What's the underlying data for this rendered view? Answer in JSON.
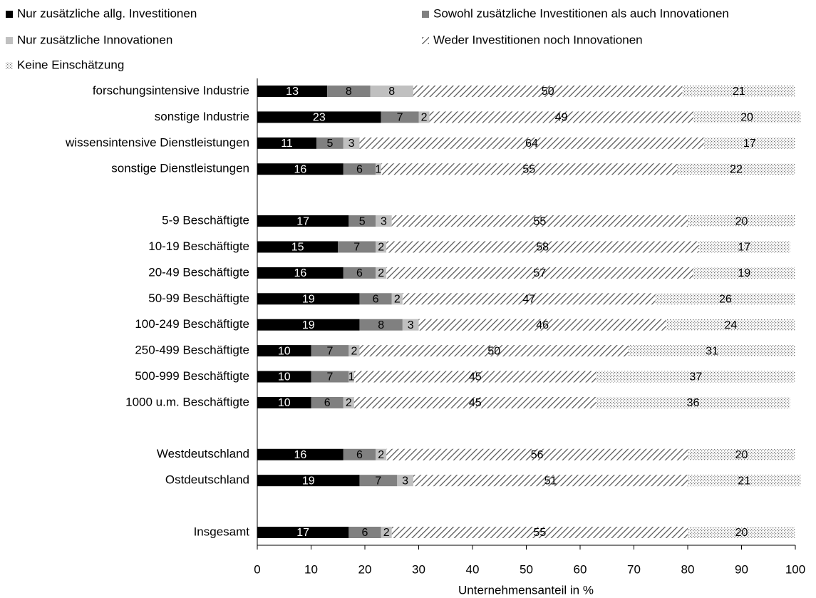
{
  "chart_data": {
    "type": "stacked-barh",
    "xlabel": "Unternehmensanteil in %",
    "categories": [
      "forschungsintensive Industrie",
      "sonstige Industrie",
      "wissensintensive Dienstleistungen",
      "sonstige Dienstleistungen",
      null,
      "5-9 Beschäftigte",
      "10-19 Beschäftigte",
      "20-49 Beschäftigte",
      "50-99 Beschäftigte",
      "100-249 Beschäftigte",
      "250-499 Beschäftigte",
      "500-999 Beschäftigte",
      "1000 u.m. Beschäftigte",
      null,
      "Westdeutschland",
      "Ostdeutschland",
      null,
      "Insgesamt"
    ],
    "series": [
      {
        "name": "Nur zusätzliche allg. Investitionen",
        "color": "#000000",
        "pattern": "solid",
        "values": [
          13,
          23,
          11,
          16,
          null,
          17,
          15,
          16,
          19,
          19,
          10,
          10,
          10,
          null,
          16,
          19,
          null,
          17
        ]
      },
      {
        "name": "Sowohl zusätzliche Investitionen als auch Innovationen",
        "color": "#808080",
        "pattern": "solid",
        "values": [
          8,
          7,
          5,
          6,
          null,
          5,
          7,
          6,
          6,
          8,
          7,
          7,
          6,
          null,
          6,
          7,
          null,
          6
        ]
      },
      {
        "name": "Nur zusätzliche Innovationen",
        "color": "#c0c0c0",
        "pattern": "solid",
        "values": [
          8,
          2,
          3,
          1,
          null,
          3,
          2,
          2,
          2,
          3,
          2,
          1,
          2,
          null,
          2,
          3,
          null,
          2
        ]
      },
      {
        "name": "Weder Investitionen noch Innovationen",
        "color": "#808080",
        "pattern": "hatch",
        "values": [
          50,
          49,
          64,
          55,
          null,
          55,
          58,
          57,
          47,
          46,
          50,
          45,
          45,
          null,
          56,
          51,
          null,
          55
        ]
      },
      {
        "name": "Keine Einschätzung",
        "color": "#808080",
        "pattern": "dots",
        "values": [
          21,
          20,
          17,
          22,
          null,
          20,
          17,
          19,
          26,
          24,
          31,
          37,
          36,
          null,
          20,
          21,
          null,
          20
        ]
      }
    ],
    "xlim": [
      0,
      100
    ],
    "xticks": [
      0,
      10,
      20,
      30,
      40,
      50,
      60,
      70,
      80,
      90,
      100
    ]
  }
}
